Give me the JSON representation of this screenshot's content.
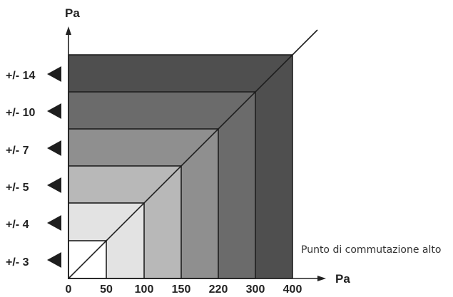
{
  "axes": {
    "y_unit": "Pa",
    "x_unit": "Pa",
    "x_ticks": [
      "0",
      "50",
      "100",
      "150",
      "220",
      "300",
      "400"
    ]
  },
  "levels": [
    {
      "label": "+/- 3",
      "fill": "#ffffff"
    },
    {
      "label": "+/- 4",
      "fill": "#e3e3e3"
    },
    {
      "label": "+/- 5",
      "fill": "#b8b8b8"
    },
    {
      "label": "+/- 7",
      "fill": "#8f8f8f"
    },
    {
      "label": "+/- 10",
      "fill": "#6b6b6b"
    },
    {
      "label": "+/- 14",
      "fill": "#4f4f4f"
    }
  ],
  "annotation": "Punto di commutazione alto",
  "colors": {
    "marker": "#1e1e1e",
    "axis": "#222222",
    "outline": "#1e1e1e"
  }
}
